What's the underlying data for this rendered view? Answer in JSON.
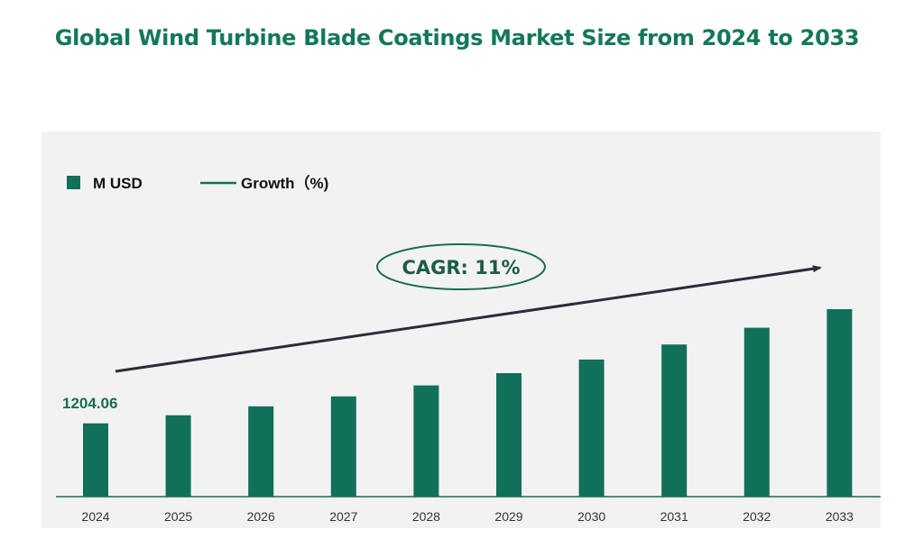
{
  "title": "Global Wind Turbine Blade Coatings Market Size from 2024 to 2033",
  "colors": {
    "bar": "#10705a",
    "title": "#13785a",
    "arrow": "#2b2b3a",
    "panel": "#f2f2f2"
  },
  "chart_data": {
    "type": "bar",
    "title": "Global Wind Turbine Blade Coatings Market Size from 2024 to 2033",
    "categories": [
      "2024",
      "2025",
      "2026",
      "2027",
      "2028",
      "2029",
      "2030",
      "2031",
      "2032",
      "2033"
    ],
    "series": [
      {
        "name": "M USD",
        "values": [
          1204.06,
          1336.5,
          1483.5,
          1646.7,
          1827.9,
          2029.0,
          2252.2,
          2499.9,
          2774.9,
          3080.2
        ]
      }
    ],
    "legend": [
      "M USD",
      "Growth（%)"
    ],
    "legend_position": "top-left",
    "first_value_label": "1204.06",
    "annotation": "CAGR: 11%",
    "xlabel": "",
    "ylabel": "",
    "ylim": [
      0,
      3400
    ],
    "grid": false
  }
}
